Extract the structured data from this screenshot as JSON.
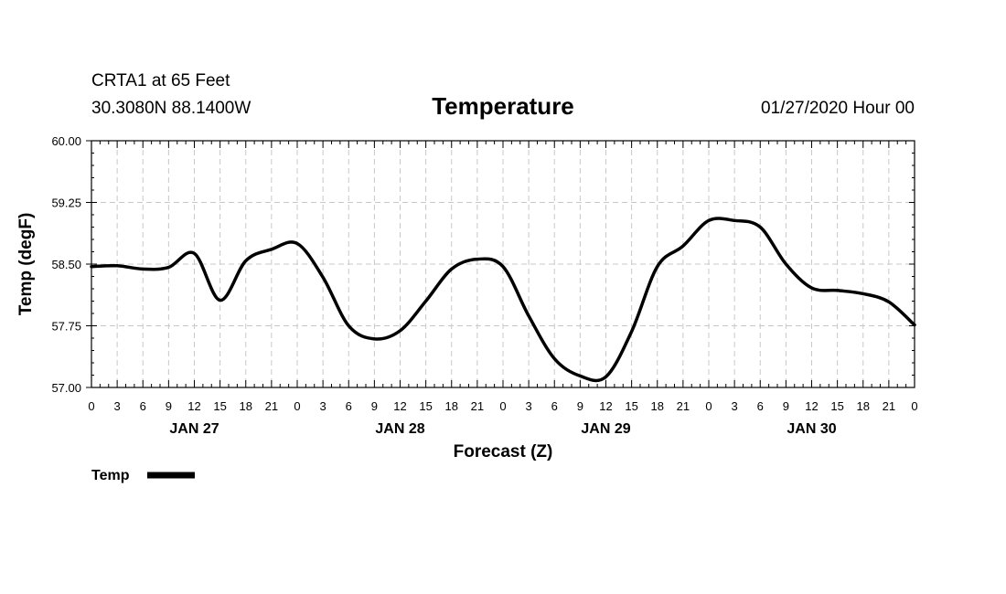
{
  "header": {
    "station": "CRTA1 at 65 Feet",
    "coords": "30.3080N 88.1400W",
    "title": "Temperature",
    "datetime": "01/27/2020 Hour 00"
  },
  "chart_data": {
    "type": "line",
    "title": "Temperature",
    "xlabel": "Forecast (Z)",
    "ylabel": "Temp (degF)",
    "ylim": [
      57.0,
      60.0
    ],
    "yticks": [
      "57.00",
      "57.75",
      "58.50",
      "59.25",
      "60.00"
    ],
    "xlim": [
      0,
      96
    ],
    "xtick_labels": [
      "0",
      "3",
      "6",
      "9",
      "12",
      "15",
      "18",
      "21",
      "0",
      "3",
      "6",
      "9",
      "12",
      "15",
      "18",
      "21",
      "0",
      "3",
      "6",
      "9",
      "12",
      "15",
      "18",
      "21",
      "0",
      "3",
      "6",
      "9",
      "12",
      "15",
      "18",
      "21",
      "0"
    ],
    "date_labels": [
      {
        "label": "JAN 27",
        "x": 12
      },
      {
        "label": "JAN 28",
        "x": 36
      },
      {
        "label": "JAN 29",
        "x": 60
      },
      {
        "label": "JAN 30",
        "x": 84
      }
    ],
    "grid": true,
    "legend": "bottom-left",
    "line_color": "#000000",
    "series": [
      {
        "name": "Temp",
        "x": [
          0,
          3,
          6,
          9,
          12,
          15,
          18,
          21,
          24,
          27,
          30,
          33,
          36,
          39,
          42,
          45,
          48,
          51,
          54,
          57,
          60,
          63,
          66,
          69,
          72,
          75,
          78,
          81,
          84,
          87,
          90,
          93,
          96
        ],
        "values": [
          58.47,
          58.48,
          58.44,
          58.46,
          58.63,
          58.06,
          58.54,
          58.68,
          58.75,
          58.34,
          57.75,
          57.59,
          57.69,
          58.05,
          58.44,
          58.56,
          58.47,
          57.87,
          57.35,
          57.14,
          57.13,
          57.68,
          58.47,
          58.72,
          59.03,
          59.03,
          58.95,
          58.5,
          58.21,
          58.18,
          58.14,
          58.04,
          57.76
        ]
      }
    ]
  },
  "legend": {
    "label": "Temp"
  }
}
